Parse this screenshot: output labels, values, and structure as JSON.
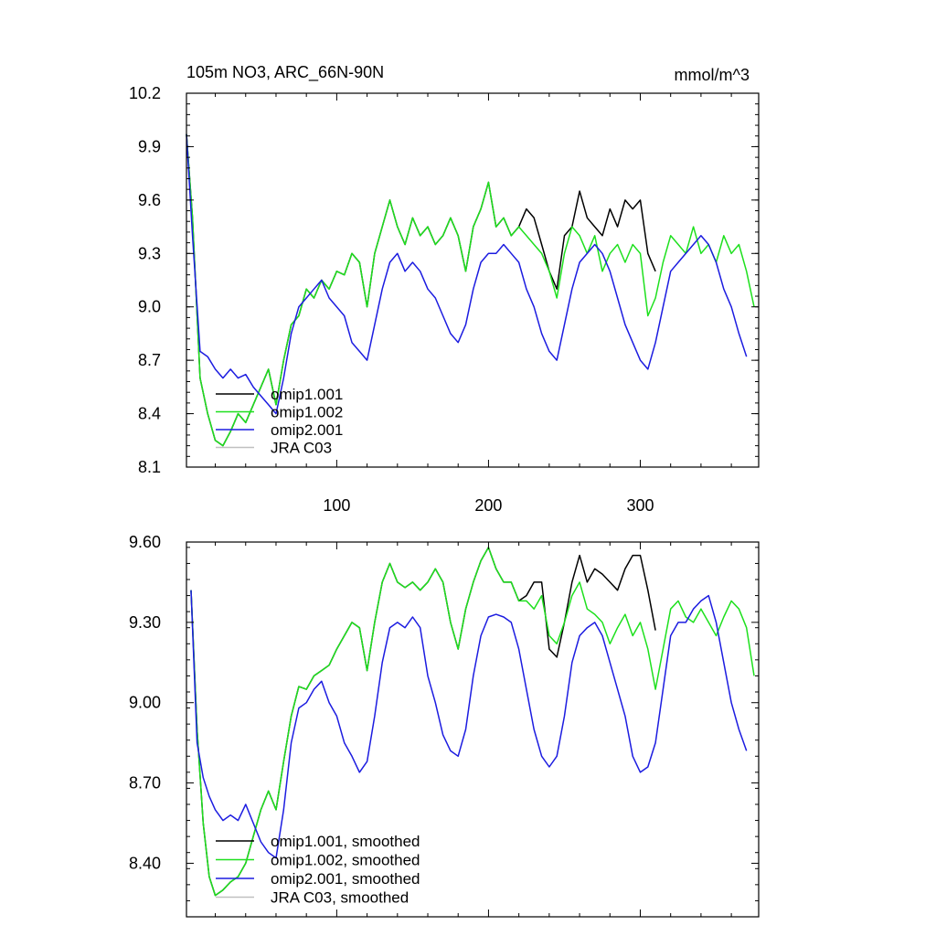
{
  "chart_data": [
    {
      "type": "line",
      "title": "105m NO3, ARC_66N-90N",
      "units": "mmol/m^3",
      "xlabel": "",
      "ylabel": "",
      "xlim": [
        1,
        378
      ],
      "ylim": [
        8.1,
        10.2
      ],
      "xticks": [
        100,
        200,
        300
      ],
      "xtick_labels": [
        "100",
        "200",
        "300"
      ],
      "yticks": [
        8.1,
        8.4,
        8.7,
        9.0,
        9.3,
        9.6,
        9.9,
        10.2
      ],
      "ytick_labels": [
        "8.1",
        "8.4",
        "8.7",
        "9.0",
        "9.3",
        "9.6",
        "9.9",
        "10.2"
      ],
      "legend_position": "bottom-left",
      "series": [
        {
          "name": "omip1.001",
          "color": "#000000",
          "x": [
            1,
            5,
            10,
            15,
            20,
            25,
            30,
            35,
            40,
            45,
            50,
            55,
            60,
            65,
            70,
            75,
            80,
            85,
            90,
            95,
            100,
            105,
            110,
            115,
            120,
            125,
            130,
            135,
            140,
            145,
            150,
            155,
            160,
            165,
            170,
            175,
            180,
            185,
            190,
            195,
            200,
            205,
            210,
            215,
            220,
            225,
            230,
            235,
            240,
            245,
            250,
            255,
            260,
            265,
            270,
            275,
            280,
            285,
            290,
            295,
            300,
            305,
            310
          ],
          "values": [
            9.97,
            9.5,
            8.6,
            8.4,
            8.25,
            8.22,
            8.3,
            8.4,
            8.35,
            8.45,
            8.55,
            8.65,
            8.45,
            8.7,
            8.9,
            8.95,
            9.1,
            9.05,
            9.15,
            9.1,
            9.2,
            9.18,
            9.3,
            9.25,
            9.0,
            9.3,
            9.45,
            9.6,
            9.45,
            9.35,
            9.5,
            9.4,
            9.45,
            9.35,
            9.4,
            9.5,
            9.4,
            9.2,
            9.45,
            9.55,
            9.7,
            9.45,
            9.5,
            9.4,
            9.45,
            9.55,
            9.5,
            9.35,
            9.2,
            9.1,
            9.4,
            9.45,
            9.65,
            9.5,
            9.45,
            9.4,
            9.55,
            9.45,
            9.6,
            9.55,
            9.6,
            9.3,
            9.2
          ]
        },
        {
          "name": "omip1.002",
          "color": "#1ee01e",
          "x": [
            1,
            5,
            10,
            15,
            20,
            25,
            30,
            35,
            40,
            45,
            50,
            55,
            60,
            65,
            70,
            75,
            80,
            85,
            90,
            95,
            100,
            105,
            110,
            115,
            120,
            125,
            130,
            135,
            140,
            145,
            150,
            155,
            160,
            165,
            170,
            175,
            180,
            185,
            190,
            195,
            200,
            205,
            210,
            215,
            220,
            225,
            230,
            235,
            240,
            245,
            250,
            255,
            260,
            265,
            270,
            275,
            280,
            285,
            290,
            295,
            300,
            305,
            310,
            315,
            320,
            325,
            330,
            335,
            340,
            345,
            350,
            355,
            360,
            365,
            370,
            375
          ],
          "values": [
            9.97,
            9.5,
            8.6,
            8.4,
            8.25,
            8.22,
            8.3,
            8.4,
            8.35,
            8.45,
            8.55,
            8.65,
            8.45,
            8.7,
            8.9,
            8.95,
            9.1,
            9.05,
            9.15,
            9.1,
            9.2,
            9.18,
            9.3,
            9.25,
            9.0,
            9.3,
            9.45,
            9.6,
            9.45,
            9.35,
            9.5,
            9.4,
            9.45,
            9.35,
            9.4,
            9.5,
            9.4,
            9.2,
            9.45,
            9.55,
            9.7,
            9.45,
            9.5,
            9.4,
            9.45,
            9.4,
            9.35,
            9.3,
            9.2,
            9.05,
            9.3,
            9.45,
            9.4,
            9.3,
            9.4,
            9.2,
            9.3,
            9.35,
            9.25,
            9.35,
            9.3,
            8.95,
            9.05,
            9.25,
            9.4,
            9.35,
            9.3,
            9.45,
            9.3,
            9.35,
            9.25,
            9.4,
            9.3,
            9.35,
            9.2,
            9.0
          ]
        },
        {
          "name": "omip2.001",
          "color": "#1c1ce0",
          "x": [
            1,
            5,
            10,
            15,
            20,
            25,
            30,
            35,
            40,
            45,
            50,
            55,
            60,
            65,
            70,
            75,
            80,
            85,
            90,
            95,
            100,
            105,
            110,
            115,
            120,
            125,
            130,
            135,
            140,
            145,
            150,
            155,
            160,
            165,
            170,
            175,
            180,
            185,
            190,
            195,
            200,
            205,
            210,
            215,
            220,
            225,
            230,
            235,
            240,
            245,
            250,
            255,
            260,
            265,
            270,
            275,
            280,
            285,
            290,
            295,
            300,
            305,
            310,
            315,
            320,
            325,
            330,
            335,
            340,
            345,
            350,
            355,
            360,
            365,
            370
          ],
          "values": [
            9.97,
            9.4,
            8.75,
            8.72,
            8.65,
            8.6,
            8.65,
            8.6,
            8.62,
            8.55,
            8.5,
            8.45,
            8.4,
            8.6,
            8.85,
            9.0,
            9.05,
            9.1,
            9.15,
            9.05,
            9.0,
            8.95,
            8.8,
            8.75,
            8.7,
            8.9,
            9.1,
            9.25,
            9.3,
            9.2,
            9.25,
            9.2,
            9.1,
            9.05,
            8.95,
            8.85,
            8.8,
            8.9,
            9.1,
            9.25,
            9.3,
            9.3,
            9.35,
            9.3,
            9.25,
            9.1,
            9.0,
            8.85,
            8.75,
            8.7,
            8.9,
            9.1,
            9.25,
            9.3,
            9.35,
            9.3,
            9.2,
            9.05,
            8.9,
            8.8,
            8.7,
            8.65,
            8.8,
            9.0,
            9.2,
            9.25,
            9.3,
            9.35,
            9.4,
            9.35,
            9.25,
            9.1,
            9.0,
            8.85,
            8.72
          ]
        },
        {
          "name": "JRA C03",
          "color": "#c0c0c0",
          "x": [],
          "values": []
        }
      ]
    },
    {
      "type": "line",
      "title": "",
      "xlabel": "",
      "ylabel": "",
      "xlim": [
        1,
        378
      ],
      "ylim": [
        8.2,
        9.6
      ],
      "xticks": [
        100,
        200,
        300
      ],
      "xtick_labels": [],
      "yticks": [
        8.4,
        8.7,
        9.0,
        9.3,
        9.6
      ],
      "ytick_labels": [
        "8.40",
        "8.70",
        "9.00",
        "9.30",
        "9.60"
      ],
      "legend_position": "bottom-left",
      "series": [
        {
          "name": "omip1.001, smoothed",
          "color": "#000000",
          "x": [
            4,
            8,
            12,
            16,
            20,
            25,
            30,
            35,
            40,
            45,
            50,
            55,
            60,
            65,
            70,
            75,
            80,
            85,
            90,
            95,
            100,
            105,
            110,
            115,
            120,
            125,
            130,
            135,
            140,
            145,
            150,
            155,
            160,
            165,
            170,
            175,
            180,
            185,
            190,
            195,
            200,
            205,
            210,
            215,
            220,
            225,
            230,
            235,
            240,
            245,
            250,
            255,
            260,
            265,
            270,
            275,
            280,
            285,
            290,
            295,
            300,
            305,
            310
          ],
          "values": [
            9.42,
            8.9,
            8.55,
            8.35,
            8.28,
            8.3,
            8.33,
            8.35,
            8.4,
            8.5,
            8.6,
            8.67,
            8.6,
            8.78,
            8.95,
            9.06,
            9.05,
            9.1,
            9.12,
            9.14,
            9.2,
            9.25,
            9.3,
            9.28,
            9.12,
            9.3,
            9.45,
            9.52,
            9.45,
            9.43,
            9.45,
            9.42,
            9.45,
            9.5,
            9.45,
            9.3,
            9.2,
            9.35,
            9.45,
            9.53,
            9.58,
            9.5,
            9.45,
            9.45,
            9.38,
            9.4,
            9.45,
            9.45,
            9.2,
            9.17,
            9.3,
            9.45,
            9.55,
            9.45,
            9.5,
            9.48,
            9.45,
            9.42,
            9.5,
            9.55,
            9.55,
            9.42,
            9.27
          ]
        },
        {
          "name": "omip1.002, smoothed",
          "color": "#1ee01e",
          "x": [
            4,
            8,
            12,
            16,
            20,
            25,
            30,
            35,
            40,
            45,
            50,
            55,
            60,
            65,
            70,
            75,
            80,
            85,
            90,
            95,
            100,
            105,
            110,
            115,
            120,
            125,
            130,
            135,
            140,
            145,
            150,
            155,
            160,
            165,
            170,
            175,
            180,
            185,
            190,
            195,
            200,
            205,
            210,
            215,
            220,
            225,
            230,
            235,
            240,
            245,
            250,
            255,
            260,
            265,
            270,
            275,
            280,
            285,
            290,
            295,
            300,
            305,
            310,
            315,
            320,
            325,
            330,
            335,
            340,
            345,
            350,
            355,
            360,
            365,
            370,
            375
          ],
          "values": [
            9.42,
            8.9,
            8.55,
            8.35,
            8.28,
            8.3,
            8.33,
            8.35,
            8.4,
            8.5,
            8.6,
            8.67,
            8.6,
            8.78,
            8.95,
            9.06,
            9.05,
            9.1,
            9.12,
            9.14,
            9.2,
            9.25,
            9.3,
            9.28,
            9.12,
            9.3,
            9.45,
            9.52,
            9.45,
            9.43,
            9.45,
            9.42,
            9.45,
            9.5,
            9.45,
            9.3,
            9.2,
            9.35,
            9.45,
            9.53,
            9.58,
            9.5,
            9.45,
            9.45,
            9.38,
            9.38,
            9.35,
            9.4,
            9.25,
            9.22,
            9.3,
            9.4,
            9.45,
            9.35,
            9.33,
            9.3,
            9.22,
            9.28,
            9.33,
            9.25,
            9.3,
            9.2,
            9.05,
            9.2,
            9.35,
            9.38,
            9.32,
            9.3,
            9.35,
            9.3,
            9.25,
            9.32,
            9.38,
            9.35,
            9.28,
            9.1
          ]
        },
        {
          "name": "omip2.001, smoothed",
          "color": "#1c1ce0",
          "x": [
            4,
            8,
            12,
            16,
            20,
            25,
            30,
            35,
            40,
            45,
            50,
            55,
            60,
            65,
            70,
            75,
            80,
            85,
            90,
            95,
            100,
            105,
            110,
            115,
            120,
            125,
            130,
            135,
            140,
            145,
            150,
            155,
            160,
            165,
            170,
            175,
            180,
            185,
            190,
            195,
            200,
            205,
            210,
            215,
            220,
            225,
            230,
            235,
            240,
            245,
            250,
            255,
            260,
            265,
            270,
            275,
            280,
            285,
            290,
            295,
            300,
            305,
            310,
            315,
            320,
            325,
            330,
            335,
            340,
            345,
            350,
            355,
            360,
            365,
            370
          ],
          "values": [
            9.42,
            8.85,
            8.72,
            8.65,
            8.6,
            8.56,
            8.58,
            8.56,
            8.62,
            8.55,
            8.48,
            8.44,
            8.42,
            8.6,
            8.85,
            8.98,
            9.0,
            9.05,
            9.08,
            9.0,
            8.95,
            8.85,
            8.8,
            8.74,
            8.78,
            8.95,
            9.15,
            9.28,
            9.3,
            9.28,
            9.32,
            9.28,
            9.1,
            9.0,
            8.88,
            8.82,
            8.8,
            8.9,
            9.1,
            9.25,
            9.32,
            9.33,
            9.32,
            9.3,
            9.2,
            9.05,
            8.9,
            8.8,
            8.76,
            8.8,
            8.95,
            9.15,
            9.25,
            9.28,
            9.3,
            9.25,
            9.15,
            9.05,
            8.95,
            8.8,
            8.74,
            8.76,
            8.85,
            9.05,
            9.25,
            9.3,
            9.3,
            9.35,
            9.38,
            9.4,
            9.3,
            9.15,
            9.0,
            8.9,
            8.82
          ]
        },
        {
          "name": "JRA C03, smoothed",
          "color": "#c0c0c0",
          "x": [],
          "values": []
        }
      ]
    }
  ]
}
